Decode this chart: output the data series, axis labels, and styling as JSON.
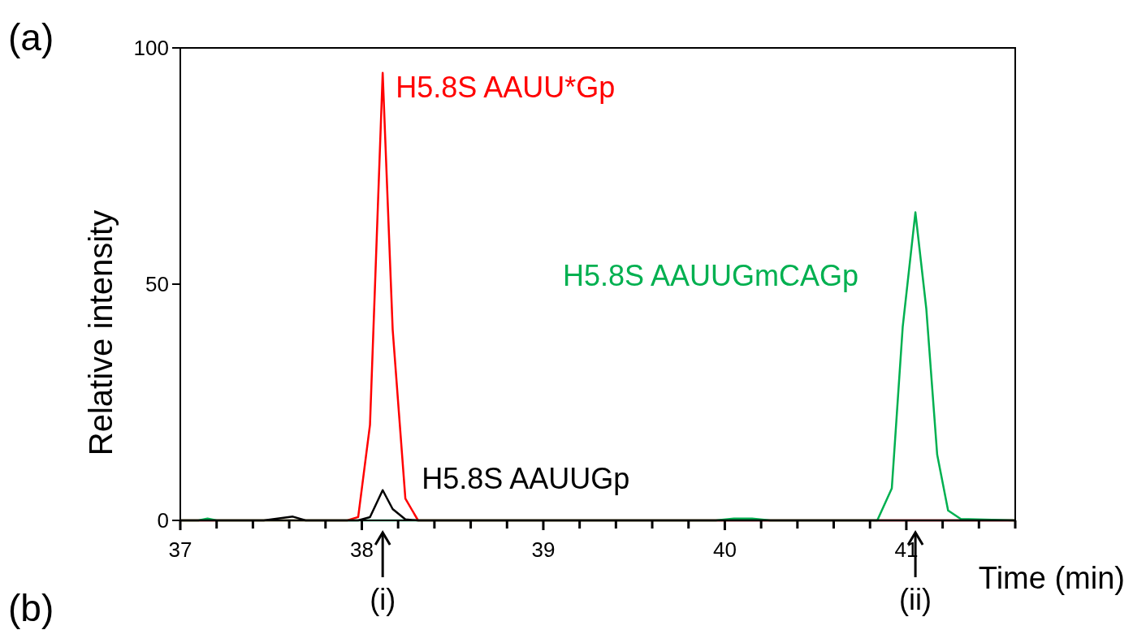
{
  "chart_data": {
    "type": "line",
    "xlabel": "Time (min)",
    "ylabel": "Relative intensity",
    "xlim": [
      37,
      41.6
    ],
    "ylim": [
      0,
      100
    ],
    "xticks": [
      37,
      {
        "value": 37.2,
        "label": null
      },
      {
        "value": 37.4,
        "label": null
      },
      {
        "value": 37.6,
        "label": null
      },
      {
        "value": 37.8,
        "label": null
      },
      38,
      {
        "value": 38.2,
        "label": null
      },
      {
        "value": 38.4,
        "label": null
      },
      {
        "value": 38.6,
        "label": null
      },
      {
        "value": 38.8,
        "label": null
      },
      39,
      {
        "value": 39.2,
        "label": null
      },
      {
        "value": 39.4,
        "label": null
      },
      {
        "value": 39.6,
        "label": null
      },
      {
        "value": 39.8,
        "label": null
      },
      40,
      {
        "value": 40.2,
        "label": null
      },
      {
        "value": 40.4,
        "label": null
      },
      {
        "value": 40.6,
        "label": null
      },
      {
        "value": 40.8,
        "label": null
      },
      41,
      {
        "value": 41.2,
        "label": null
      },
      {
        "value": 41.4,
        "label": null
      },
      {
        "value": 41.6,
        "label": null
      }
    ],
    "yticks": [
      0,
      50,
      100
    ],
    "grid": false,
    "marker": "none",
    "line_style": "solid",
    "series": [
      {
        "name": "H5.8S AAUU*Gp",
        "color": "#ff0000",
        "x": [
          37,
          37.92,
          37.98,
          38.045,
          38.115,
          38.17,
          38.24,
          38.31,
          41.6
        ],
        "values": [
          0,
          0,
          0.7,
          20.2,
          94.7,
          40.4,
          4.6,
          0,
          0
        ]
      },
      {
        "name": "H5.8S AAUUGmCAGp",
        "color": "#00b050",
        "x": [
          37,
          37.1,
          37.15,
          37.2,
          39.95,
          40.05,
          40.15,
          40.25,
          40.84,
          40.92,
          40.98,
          41.05,
          41.11,
          41.17,
          41.23,
          41.3,
          41.6
        ],
        "values": [
          0,
          0,
          0.4,
          0,
          0,
          0.4,
          0.4,
          0,
          0,
          6.8,
          40.9,
          65.2,
          44.8,
          13.9,
          2.1,
          0.3,
          0
        ]
      },
      {
        "name": "H5.8S AAUUGp",
        "color": "#000000",
        "x": [
          37,
          37.46,
          37.62,
          37.69,
          37.98,
          38.045,
          38.115,
          38.17,
          38.24,
          38.31,
          41.6
        ],
        "values": [
          0,
          0,
          0.8,
          0,
          0,
          0.7,
          6.4,
          2.4,
          0.2,
          0,
          0
        ]
      }
    ],
    "annotations": [
      "(a)",
      "(b)",
      {
        "text": "(i)",
        "x": 38.115
      },
      {
        "text": "(ii)",
        "x": 41.05
      }
    ]
  }
}
